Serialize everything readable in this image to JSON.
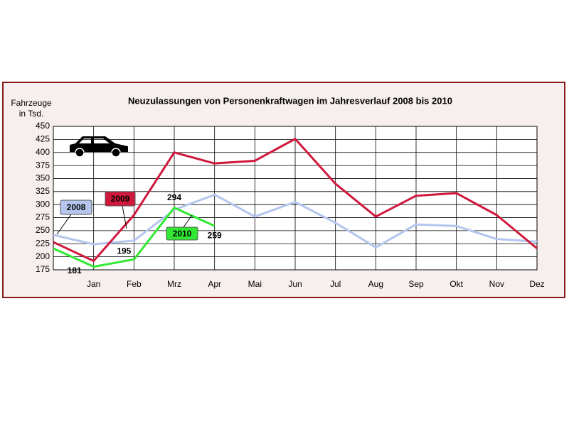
{
  "chart_data": {
    "type": "line",
    "title": "Neuzulassungen von Personenkraftwagen im Jahresverlauf 2008 bis 2010",
    "y_label": [
      "Fahrzeuge",
      "in Tsd."
    ],
    "categories": [
      null,
      "Jan",
      "Feb",
      "Mrz",
      "Apr",
      "Mai",
      "Jun",
      "Jul",
      "Aug",
      "Sep",
      "Okt",
      "Nov",
      "Dez"
    ],
    "series": [
      {
        "name": "2008",
        "color": "#b4c6ee",
        "values": [
          242,
          224,
          231,
          290,
          319,
          277,
          305,
          265,
          218,
          262,
          259,
          234,
          229
        ]
      },
      {
        "name": "2009",
        "color": "#d0183c",
        "values": [
          228,
          192,
          280,
          400,
          379,
          384,
          426,
          340,
          277,
          317,
          322,
          280,
          216
        ]
      },
      {
        "name": "2010",
        "color": "#33e833",
        "values": [
          216,
          181,
          195,
          294,
          259,
          null,
          null,
          null,
          null,
          null,
          null,
          null,
          null
        ],
        "value_labels": [
          null,
          "181",
          "195",
          "294",
          "259",
          null,
          null,
          null,
          null,
          null,
          null,
          null,
          null
        ]
      }
    ],
    "ylim": [
      175,
      450
    ],
    "yticks": [
      175,
      200,
      225,
      250,
      275,
      300,
      325,
      350,
      375,
      400,
      425,
      450
    ],
    "grid": true
  }
}
